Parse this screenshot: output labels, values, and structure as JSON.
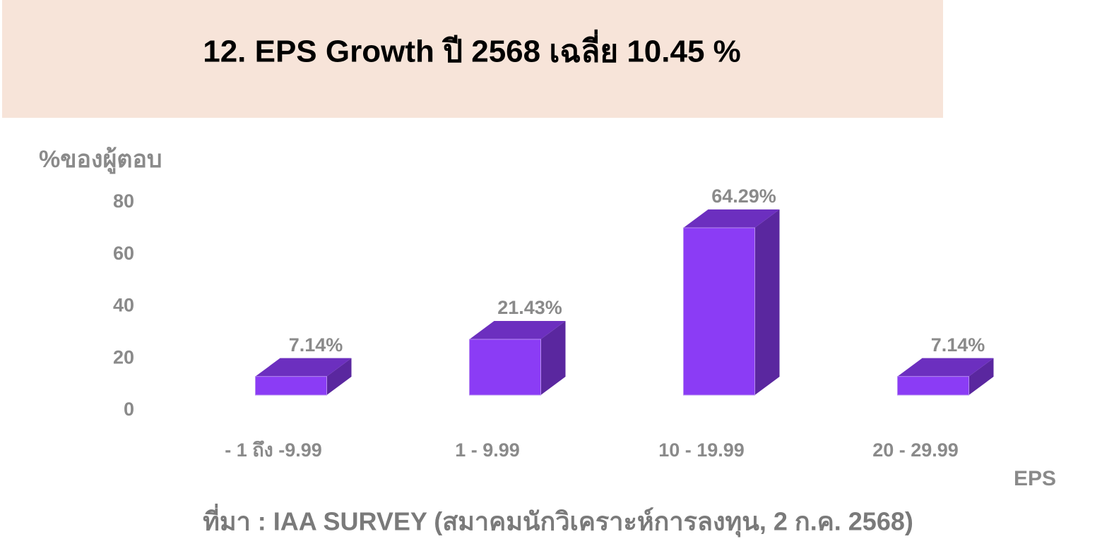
{
  "chart_data": {
    "type": "bar3d",
    "title": "12. EPS Growth ปี 2568 เฉลี่ย  10.45 %",
    "y_label": "%ของผู้ตอบ",
    "x_label": "EPS",
    "source": "ที่มา : IAA SURVEY (สมาคมนักวิเคราะห์การลงทุน, 2 ก.ค. 2568)",
    "categories": [
      "- 1 ถึง -9.99",
      "1 - 9.99",
      "10 - 19.99",
      "20 - 29.99"
    ],
    "values": [
      7.14,
      21.43,
      64.29,
      7.14
    ],
    "value_labels": [
      "7.14%",
      "21.43%",
      "64.29%",
      "7.14%"
    ],
    "color": "#8b3cf5",
    "ylim": [
      0,
      80
    ],
    "yticks": [
      0,
      20,
      40,
      60,
      80
    ],
    "grid": false
  }
}
